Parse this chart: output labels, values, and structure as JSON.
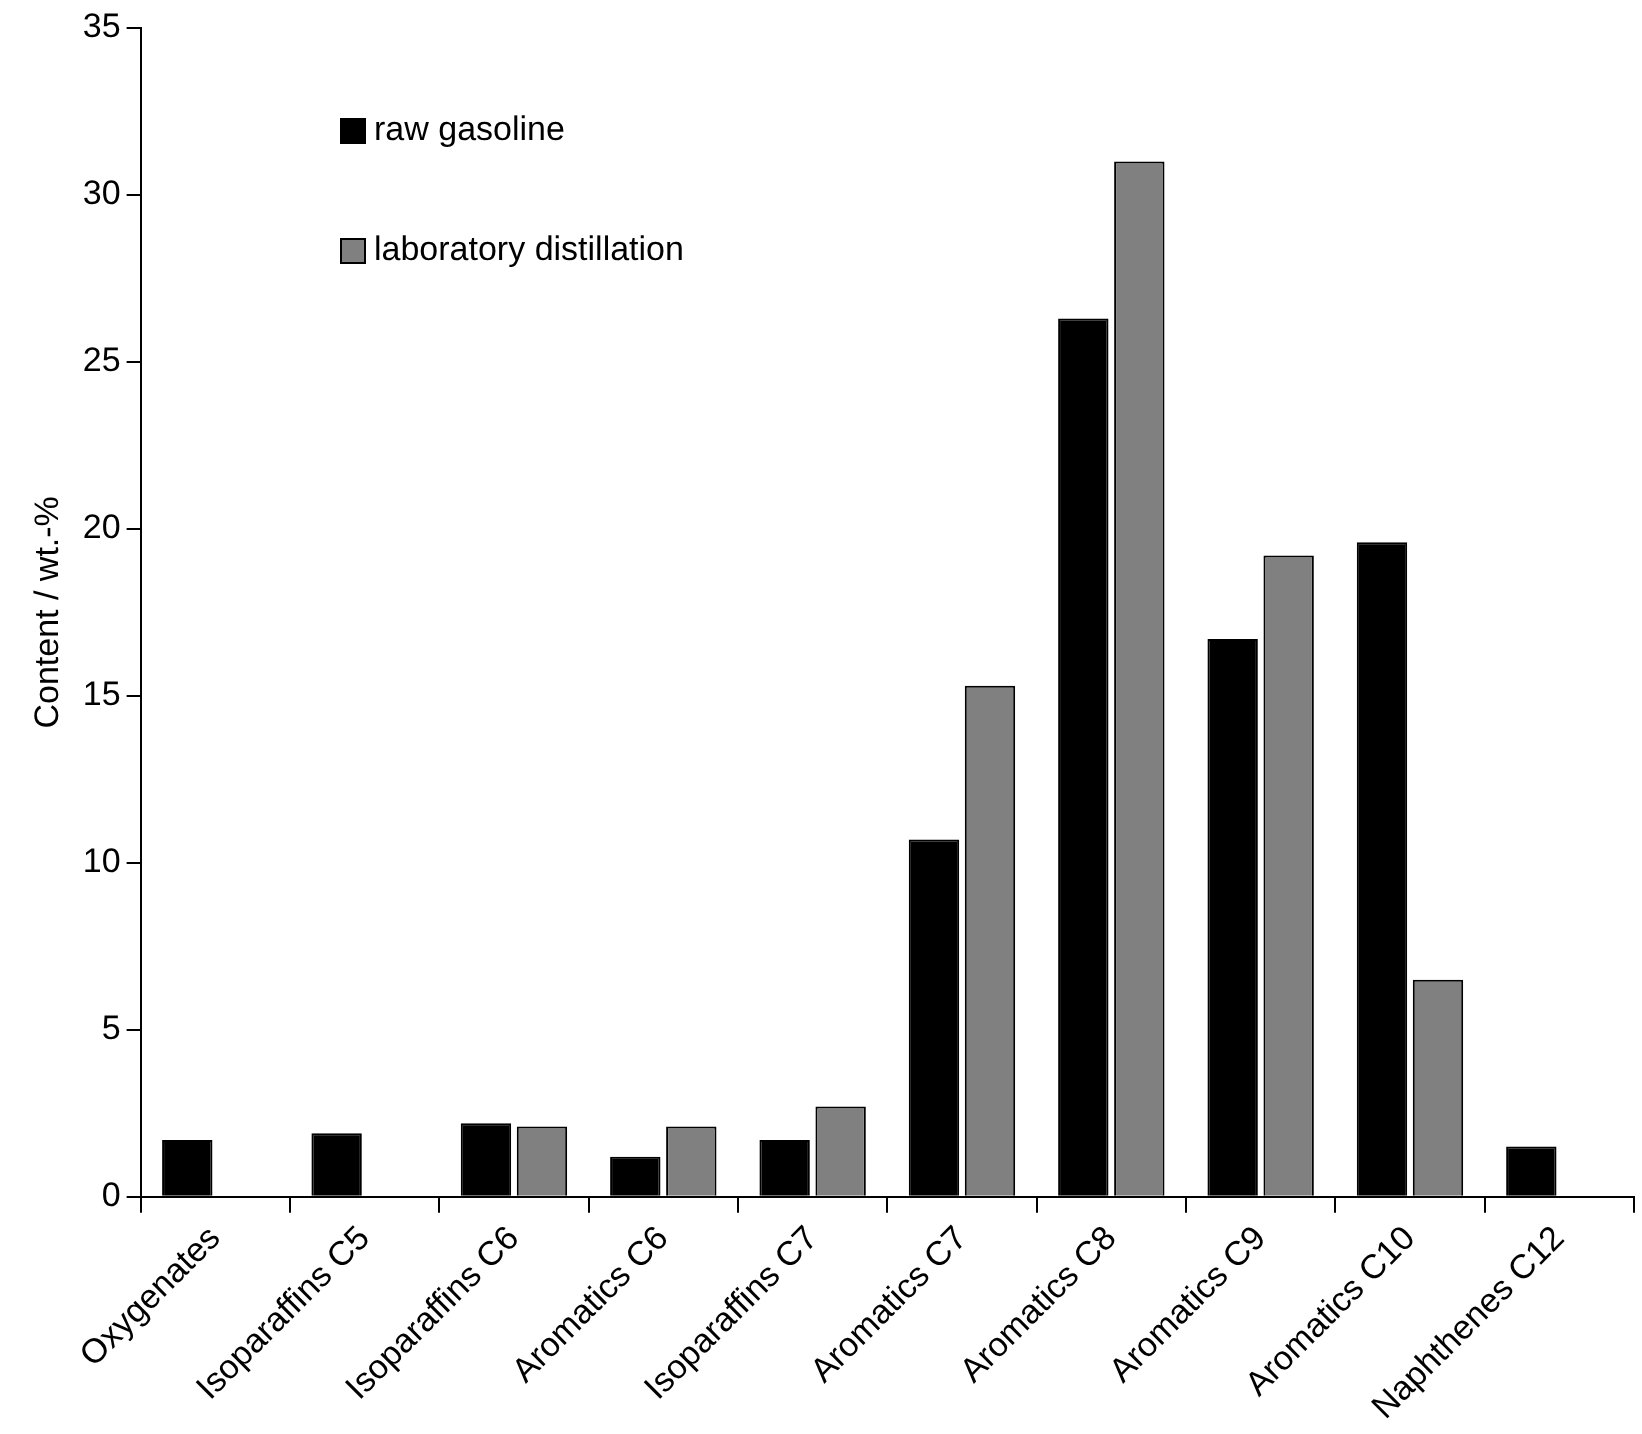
{
  "chart_data": {
    "type": "bar",
    "ylabel": "Content / wt.-%",
    "categories": [
      "Oxygenates",
      "Isoparaffins C5",
      "Isoparaffins C6",
      "Aromatics C6",
      "Isoparaffins C7",
      "Aromatics C7",
      "Aromatics C8",
      "Aromatics C9",
      "Aromatics C10",
      "Naphthenes C12"
    ],
    "series": [
      {
        "name": "raw gasoline",
        "color": "#000000",
        "values": [
          1.7,
          1.9,
          2.2,
          1.2,
          1.7,
          10.7,
          26.3,
          16.7,
          19.6,
          1.5
        ]
      },
      {
        "name": "laboratory distillation",
        "color": "#808080",
        "values": [
          null,
          null,
          2.1,
          2.1,
          2.7,
          15.3,
          31.0,
          19.2,
          6.5,
          null
        ]
      }
    ],
    "ylim": [
      0,
      35
    ],
    "yticks": [
      0,
      5,
      10,
      15,
      20,
      25,
      30,
      35
    ],
    "grid": false,
    "legend": "top left"
  }
}
